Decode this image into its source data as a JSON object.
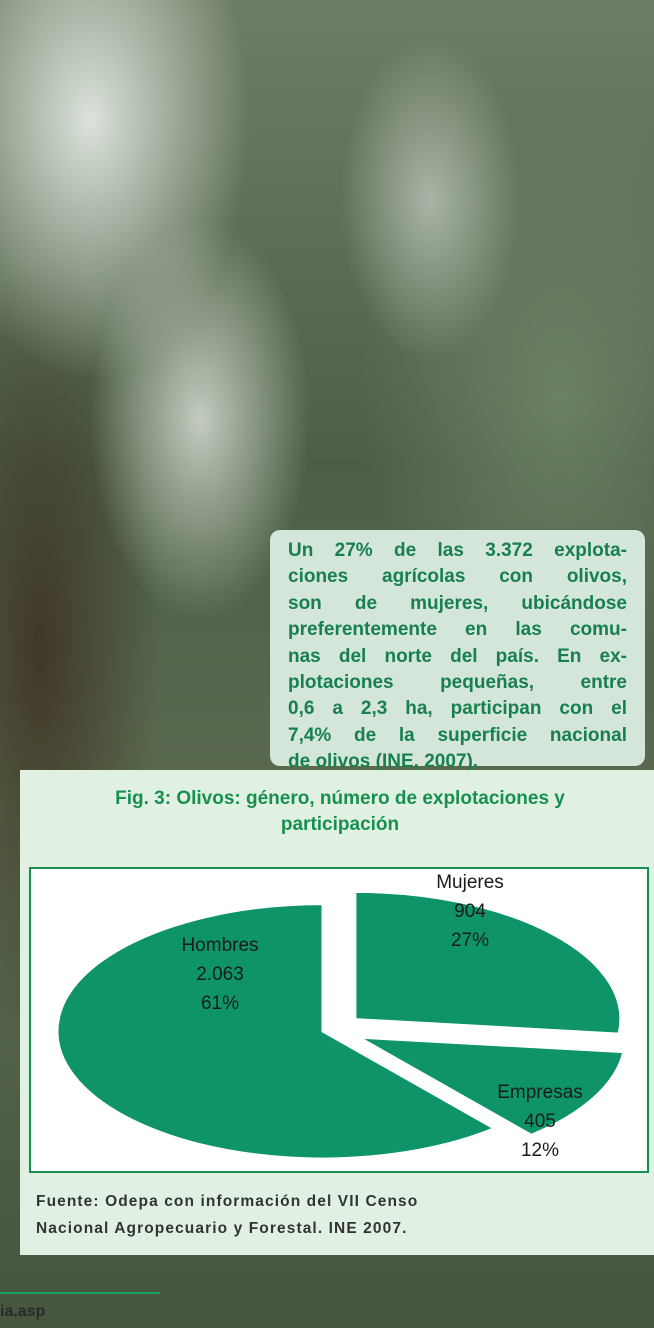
{
  "text_box": {
    "lines": [
      "Un 27% de las 3.372 explota-",
      "ciones agrícolas con olivos,",
      "son de mujeres, ubicándose",
      "preferentemente en las comu-",
      "nas del norte del país. En ex-",
      "plotaciones pequeñas, entre",
      "0,6 a 2,3 ha, participan con el",
      "7,4% de la superficie nacional",
      "de olivos (INE, 2007)."
    ]
  },
  "chart_data": {
    "type": "pie",
    "title": "Fig. 3: Olivos: género, número de explotaciones y participación",
    "categories": [
      "Mujeres",
      "Empresas",
      "Hombres"
    ],
    "values": [
      904,
      405,
      2063
    ],
    "value_labels": [
      "904",
      "405",
      "2.063"
    ],
    "percent_labels": [
      "27%",
      "12%",
      "61%"
    ],
    "color": "#0f946a"
  },
  "source": {
    "lines": [
      "Fuente: Odepa con información del VII Censo",
      "Nacional Agropecuario y Forestal. INE 2007."
    ]
  },
  "footer": "ia.asp"
}
